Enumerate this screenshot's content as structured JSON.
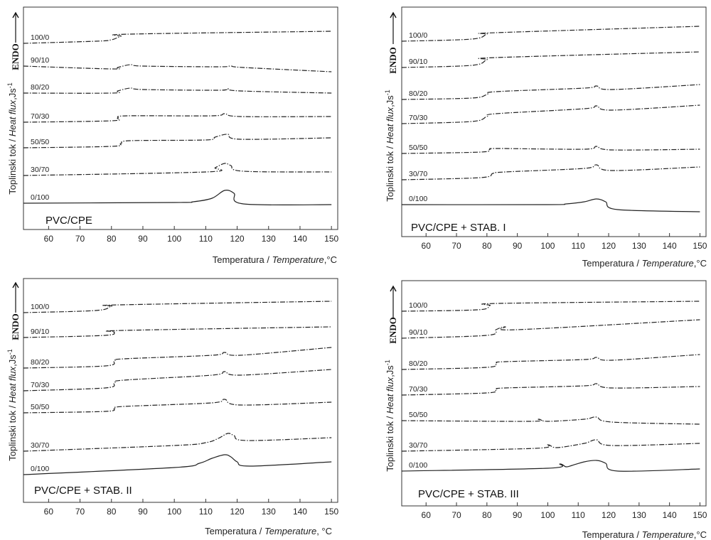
{
  "chart_data": [
    {
      "type": "line",
      "title": "PVC/CPE",
      "xlabel_plain": "Temperatura / ",
      "xlabel_italic": "Temperature",
      "xlabel_unit": ",°C",
      "ylabel_plain": "Toplinski tok / ",
      "ylabel_italic": "Heat flux",
      "ylabel_unit": ",Js",
      "ylabel_sup": "-1",
      "endo_label": "ENDO",
      "xlim": [
        52,
        152
      ],
      "x_ticks": [
        60,
        70,
        80,
        90,
        100,
        110,
        120,
        130,
        140,
        150
      ],
      "series": [
        {
          "name": "100/0",
          "style": "dashdot",
          "x": [
            52,
            75,
            80,
            83,
            86,
            150
          ],
          "y": [
            61,
            58,
            56,
            51,
            48,
            44
          ]
        },
        {
          "name": "90/10",
          "style": "dashdot",
          "x": [
            52,
            80,
            82,
            86,
            90,
            114,
            118,
            122,
            150
          ],
          "y": [
            93,
            97,
            95,
            91,
            93,
            94,
            93,
            95,
            101
          ]
        },
        {
          "name": "80/20",
          "style": "dashdot",
          "x": [
            52,
            80,
            82,
            86,
            90,
            114,
            117,
            121,
            150
          ],
          "y": [
            131,
            131,
            128,
            124,
            126,
            127,
            125,
            128,
            131
          ]
        },
        {
          "name": "70/30",
          "style": "dashdot",
          "x": [
            52,
            80,
            82,
            85,
            112,
            116,
            121,
            150
          ],
          "y": [
            172,
            170,
            166,
            163,
            163,
            160,
            164,
            164
          ]
        },
        {
          "name": "50/50",
          "style": "dashdot",
          "x": [
            52,
            80,
            83,
            86,
            110,
            113,
            117,
            121,
            150
          ],
          "y": [
            208,
            206,
            202,
            198,
            197,
            193,
            189,
            196,
            194
          ]
        },
        {
          "name": "30/70",
          "style": "dashdot",
          "x": [
            52,
            110,
            113,
            116,
            118,
            122,
            150
          ],
          "y": [
            247,
            242,
            236,
            230,
            233,
            241,
            242
          ]
        },
        {
          "name": "0/100",
          "style": "solid",
          "x": [
            52,
            100,
            106,
            112,
            116,
            119,
            122,
            150
          ],
          "y": [
            286,
            285,
            284,
            279,
            268,
            272,
            287,
            288
          ]
        }
      ]
    },
    {
      "type": "line",
      "title": "PVC/CPE + STAB. I",
      "xlabel_plain": "Temperatura / ",
      "xlabel_italic": "Temperature",
      "xlabel_unit": ",°C",
      "ylabel_plain": "Toplinski tok / ",
      "ylabel_italic": "Heat flux",
      "ylabel_unit": ",Js",
      "ylabel_sup": "-1",
      "endo_label": "ENDO",
      "xlim": [
        52,
        152
      ],
      "x_ticks": [
        60,
        70,
        80,
        90,
        100,
        110,
        120,
        130,
        140,
        150
      ],
      "series": [
        {
          "name": "100/0",
          "style": "dashdot",
          "x": [
            52,
            75,
            80,
            83,
            150
          ],
          "y": [
            58,
            55,
            48,
            46,
            37
          ]
        },
        {
          "name": "90/10",
          "style": "dashdot",
          "x": [
            52,
            75,
            80,
            83,
            150
          ],
          "y": [
            95,
            92,
            84,
            81,
            73
          ]
        },
        {
          "name": "80/20",
          "style": "dashdot",
          "x": [
            52,
            75,
            80,
            83,
            112,
            116,
            121,
            150
          ],
          "y": [
            140,
            138,
            133,
            129,
            124,
            121,
            126,
            119
          ]
        },
        {
          "name": "70/30",
          "style": "dashdot",
          "x": [
            52,
            75,
            80,
            83,
            112,
            116,
            121,
            150
          ],
          "y": [
            174,
            171,
            164,
            160,
            153,
            149,
            155,
            148
          ]
        },
        {
          "name": "50/50",
          "style": "dashdot",
          "x": [
            52,
            78,
            81,
            84,
            112,
            116,
            121,
            150
          ],
          "y": [
            216,
            214,
            210,
            209,
            210,
            206,
            211,
            210
          ]
        },
        {
          "name": "30/70",
          "style": "dashdot",
          "x": [
            52,
            78,
            82,
            86,
            112,
            116,
            121,
            150
          ],
          "y": [
            253,
            250,
            244,
            242,
            237,
            232,
            240,
            235
          ]
        },
        {
          "name": "0/100",
          "style": "solid",
          "x": [
            52,
            100,
            106,
            112,
            116,
            119,
            123,
            150
          ],
          "y": [
            288,
            288,
            287,
            284,
            280,
            284,
            295,
            298
          ]
        }
      ]
    },
    {
      "type": "line",
      "title": "PVC/CPE + STAB. II",
      "xlabel_plain": "Temperatura / ",
      "xlabel_italic": "Temperature",
      "xlabel_unit": ", °C",
      "ylabel_plain": "Toplinski tok / ",
      "ylabel_italic": "Heat flux",
      "ylabel_unit": ",Js",
      "ylabel_sup": "-1",
      "endo_label": "ENDO",
      "xlim": [
        52,
        152
      ],
      "x_ticks": [
        60,
        70,
        80,
        90,
        100,
        110,
        120,
        130,
        140,
        150
      ],
      "series": [
        {
          "name": "100/0",
          "style": "dashdot",
          "x": [
            52,
            75,
            80,
            83,
            150
          ],
          "y": [
            440,
            437,
            431,
            429,
            424
          ]
        },
        {
          "name": "90/10",
          "style": "dashdot",
          "x": [
            52,
            78,
            81,
            84,
            150
          ],
          "y": [
            475,
            472,
            467,
            465,
            460
          ]
        },
        {
          "name": "80/20",
          "style": "dashdot",
          "x": [
            52,
            78,
            81,
            84,
            112,
            116,
            121,
            150
          ],
          "y": [
            518,
            515,
            508,
            505,
            500,
            496,
            500,
            489
          ]
        },
        {
          "name": "70/30",
          "style": "dashdot",
          "x": [
            52,
            78,
            81,
            84,
            112,
            116,
            121,
            150
          ],
          "y": [
            550,
            546,
            539,
            535,
            528,
            523,
            528,
            520
          ]
        },
        {
          "name": "50/50",
          "style": "dashdot",
          "x": [
            52,
            78,
            81,
            84,
            112,
            116,
            121,
            150
          ],
          "y": [
            581,
            579,
            575,
            572,
            567,
            562,
            570,
            566
          ]
        },
        {
          "name": "30/70",
          "style": "dashdot",
          "x": [
            52,
            100,
            110,
            114,
            117,
            119,
            123,
            150
          ],
          "y": [
            635,
            627,
            623,
            617,
            610,
            613,
            620,
            616
          ]
        },
        {
          "name": "0/100",
          "style": "solid",
          "x": [
            52,
            100,
            108,
            112,
            116,
            118,
            120,
            124,
            150
          ],
          "y": [
            668,
            658,
            652,
            645,
            640,
            643,
            650,
            656,
            650
          ]
        }
      ]
    },
    {
      "type": "line",
      "title": "PVC/CPE + STAB. III",
      "xlabel_plain": "Temperatura / ",
      "xlabel_italic": "Temperature",
      "xlabel_unit": ",°C",
      "ylabel_plain": "Toplinski tok / ",
      "ylabel_italic": "Heat flux",
      "ylabel_unit": ",Js",
      "ylabel_sup": "-1",
      "endo_label": "ENDO",
      "xlim": [
        52,
        152
      ],
      "x_ticks": [
        60,
        70,
        80,
        90,
        100,
        110,
        120,
        130,
        140,
        150
      ],
      "series": [
        {
          "name": "100/0",
          "style": "dashdot",
          "x": [
            52,
            77,
            81,
            84,
            150
          ],
          "y": [
            438,
            436,
            430,
            427,
            424
          ]
        },
        {
          "name": "90/10",
          "style": "dashdot",
          "x": [
            52,
            80,
            83,
            86,
            90,
            150
          ],
          "y": [
            476,
            472,
            464,
            460,
            464,
            450
          ]
        },
        {
          "name": "80/20",
          "style": "dashdot",
          "x": [
            52,
            80,
            83,
            86,
            112,
            116,
            121,
            150
          ],
          "y": [
            520,
            517,
            511,
            509,
            506,
            503,
            507,
            499
          ]
        },
        {
          "name": "70/30",
          "style": "dashdot",
          "x": [
            52,
            80,
            83,
            86,
            112,
            116,
            121,
            150
          ],
          "y": [
            556,
            553,
            548,
            546,
            543,
            540,
            546,
            544
          ]
        },
        {
          "name": "50/50",
          "style": "dashdot",
          "x": [
            52,
            94,
            97,
            100,
            112,
            116,
            121,
            150
          ],
          "y": [
            592,
            593,
            590,
            593,
            590,
            587,
            594,
            597
          ]
        },
        {
          "name": "30/70",
          "style": "dashdot",
          "x": [
            52,
            96,
            100,
            103,
            112,
            116,
            121,
            150
          ],
          "y": [
            635,
            631,
            626,
            630,
            624,
            619,
            627,
            624
          ]
        },
        {
          "name": "0/100",
          "style": "solid",
          "x": [
            52,
            100,
            104,
            106,
            108,
            112,
            116,
            119,
            123,
            150
          ],
          "y": [
            663,
            659,
            653,
            657,
            655,
            650,
            648,
            652,
            663,
            660
          ]
        }
      ]
    }
  ]
}
